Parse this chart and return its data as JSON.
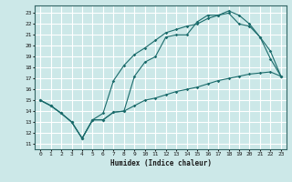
{
  "xlabel": "Humidex (Indice chaleur)",
  "bg_color": "#cce8e8",
  "grid_color": "#ffffff",
  "line_color": "#1a6b6b",
  "xlim": [
    -0.5,
    23.5
  ],
  "ylim": [
    10.5,
    23.7
  ],
  "xticks": [
    0,
    1,
    2,
    3,
    4,
    5,
    6,
    7,
    8,
    9,
    10,
    11,
    12,
    13,
    14,
    15,
    16,
    17,
    18,
    19,
    20,
    21,
    22,
    23
  ],
  "yticks": [
    11,
    12,
    13,
    14,
    15,
    16,
    17,
    18,
    19,
    20,
    21,
    22,
    23
  ],
  "line1_x": [
    0,
    1,
    2,
    3,
    4,
    5,
    6,
    7,
    8,
    9,
    10,
    11,
    12,
    13,
    14,
    15,
    16,
    17,
    18,
    19,
    20,
    21,
    22,
    23
  ],
  "line1_y": [
    15.0,
    14.5,
    13.8,
    13.0,
    11.5,
    13.2,
    13.2,
    13.9,
    14.0,
    17.2,
    18.5,
    19.0,
    20.8,
    21.0,
    21.0,
    22.2,
    22.8,
    22.8,
    23.2,
    22.8,
    22.0,
    20.8,
    18.8,
    17.2
  ],
  "line2_x": [
    0,
    1,
    2,
    3,
    4,
    5,
    6,
    7,
    8,
    9,
    10,
    11,
    12,
    13,
    14,
    15,
    16,
    17,
    18,
    19,
    20,
    21,
    22,
    23
  ],
  "line2_y": [
    15.0,
    14.5,
    13.8,
    13.0,
    11.5,
    13.2,
    13.8,
    16.8,
    18.2,
    19.2,
    19.8,
    20.5,
    21.2,
    21.5,
    21.8,
    22.0,
    22.5,
    22.8,
    23.0,
    22.0,
    21.8,
    20.8,
    19.5,
    17.2
  ],
  "line3_x": [
    0,
    1,
    2,
    3,
    4,
    5,
    6,
    7,
    8,
    9,
    10,
    11,
    12,
    13,
    14,
    15,
    16,
    17,
    18,
    19,
    20,
    21,
    22,
    23
  ],
  "line3_y": [
    15.0,
    14.5,
    13.8,
    13.0,
    11.5,
    13.2,
    13.2,
    13.9,
    14.0,
    14.5,
    15.0,
    15.2,
    15.5,
    15.8,
    16.0,
    16.2,
    16.5,
    16.8,
    17.0,
    17.2,
    17.4,
    17.5,
    17.6,
    17.2
  ]
}
